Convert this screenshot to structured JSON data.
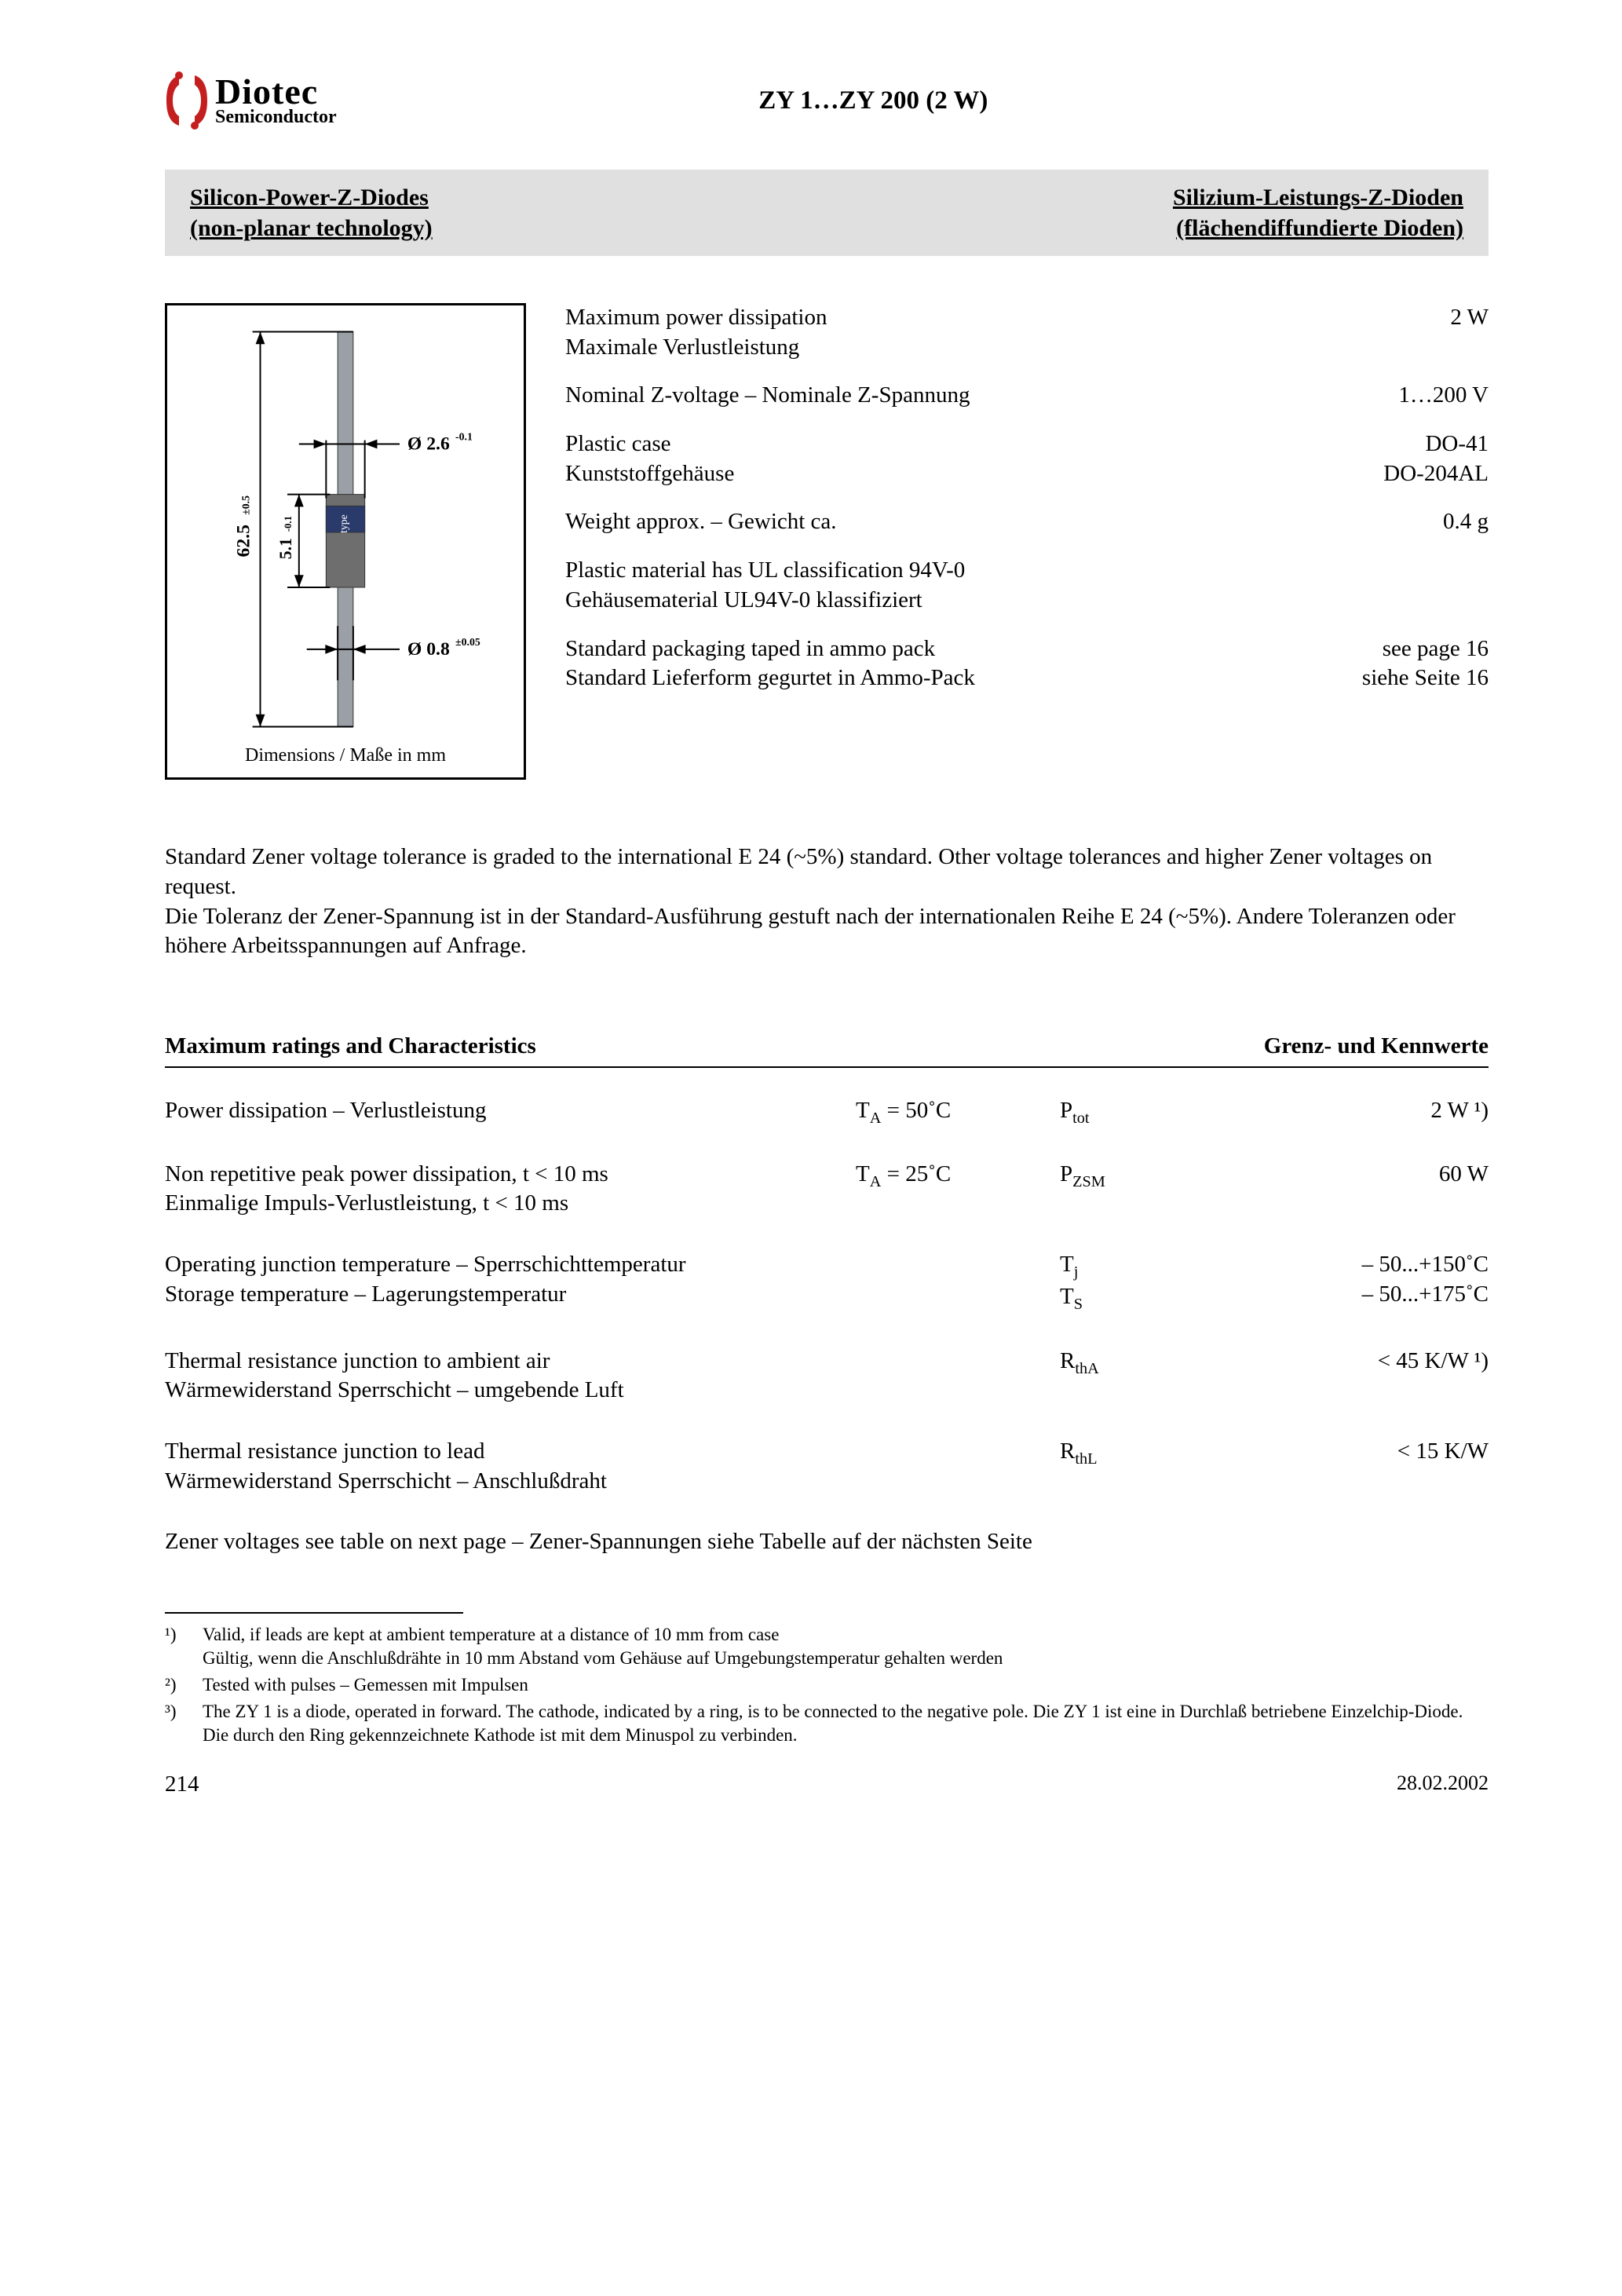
{
  "logo": {
    "name": "Diotec",
    "sub": "Semiconductor",
    "icon_color": "#c41e1e"
  },
  "page_title": "ZY 1…ZY 200 (2 W)",
  "subtitle_left_l1": "Silicon-Power-Z-Diodes",
  "subtitle_left_l2": "(non-planar technology)",
  "subtitle_right_l1": "Silizium-Leistungs-Z-Dioden",
  "subtitle_right_l2": "(flächendiffundierte Dioden)",
  "diagram": {
    "caption": "Dimensions / Maße in mm",
    "lead_dia": "Ø 0.8±0.05",
    "body_dia": "Ø 2.6-0.1",
    "body_len": "5.1-0.1",
    "total_len": "62.5±0.5",
    "band_label": "type",
    "colors": {
      "lead": "#9aa0a6",
      "body": "#6e6e6e",
      "band": "#2a3a6a",
      "text": "#000000"
    }
  },
  "specs": [
    {
      "label_en": "Maximum power dissipation",
      "label_de": "Maximale Verlustleistung",
      "value": "2 W"
    },
    {
      "label_en": "Nominal Z-voltage – Nominale Z-Spannung",
      "label_de": "",
      "value": "1…200 V"
    },
    {
      "label_en": "Plastic case",
      "label_de": "Kunststoffgehäuse",
      "value": "DO-41\nDO-204AL"
    },
    {
      "label_en": "Weight approx. – Gewicht ca.",
      "label_de": "",
      "value": "0.4 g"
    },
    {
      "label_en": "Plastic material has UL classification 94V-0",
      "label_de": "Gehäusematerial UL94V-0 klassifiziert",
      "value": ""
    },
    {
      "label_en": "Standard packaging taped in ammo pack",
      "label_de": "Standard Lieferform gegurtet in Ammo-Pack",
      "value": "see page 16\nsiehe Seite 16"
    }
  ],
  "tolerance_text": "Standard Zener voltage tolerance is graded to the international E 24 (~5%) standard. Other voltage tolerances and higher Zener voltages on request.\nDie Toleranz der Zener-Spannung ist in der Standard-Ausführung gestuft nach der internationalen Reihe E 24 (~5%). Andere Toleranzen oder höhere Arbeitsspannungen auf Anfrage.",
  "ratings_head_left": "Maximum ratings and Characteristics",
  "ratings_head_right": "Grenz- und Kennwerte",
  "ratings": [
    {
      "desc": "Power dissipation – Verlustleistung",
      "cond": "T_A = 50˚C",
      "sym": "P_tot",
      "val": "2 W ¹)"
    },
    {
      "desc": "Non repetitive peak power dissipation, t < 10 ms\nEinmalige Impuls-Verlustleistung, t < 10 ms",
      "cond": "T_A = 25˚C",
      "sym": "P_ZSM",
      "val": "60 W"
    },
    {
      "desc": "Operating junction temperature – Sperrschichttemperatur\nStorage temperature – Lagerungstemperatur",
      "cond": "",
      "sym": "T_j\nT_S",
      "val": "– 50...+150˚C\n– 50...+175˚C"
    },
    {
      "desc": "Thermal resistance junction to ambient air\nWärmewiderstand Sperrschicht – umgebende Luft",
      "cond": "",
      "sym": "R_thA",
      "val": "< 45 K/W ¹)"
    },
    {
      "desc": "Thermal resistance junction to lead\nWärmewiderstand Sperrschicht – Anschlußdraht",
      "cond": "",
      "sym": "R_thL",
      "val": "< 15 K/W"
    }
  ],
  "next_page_text": "Zener voltages see table on next page – Zener-Spannungen siehe Tabelle auf der nächsten Seite",
  "footnotes": [
    {
      "n": "¹)",
      "t": "Valid, if leads are kept at ambient temperature at a distance of 10 mm from case\nGültig, wenn die Anschlußdrähte in 10 mm Abstand vom Gehäuse auf Umgebungstemperatur gehalten werden"
    },
    {
      "n": "²)",
      "t": "Tested with pulses – Gemessen mit Impulsen"
    },
    {
      "n": "³)",
      "t": "The ZY 1 is a diode, operated in forward. The cathode, indicated by a ring, is to be connected to the negative pole. Die ZY 1 ist eine in Durchlaß betriebene Einzelchip-Diode.\nDie durch den Ring gekennzeichnete Kathode ist mit dem Minuspol zu verbinden."
    }
  ],
  "page_number": "214",
  "date": "28.02.2002"
}
